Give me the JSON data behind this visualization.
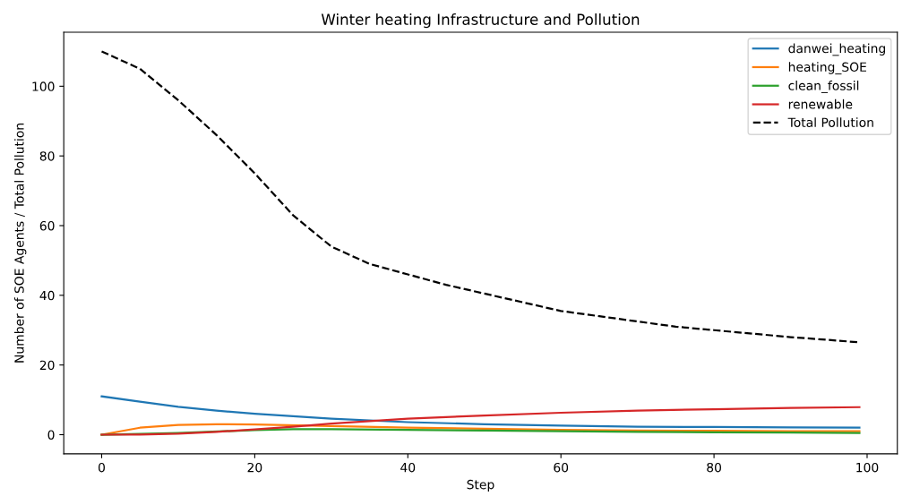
{
  "chart_data": {
    "type": "line",
    "title": "Winter heating Infrastructure and Pollution",
    "xlabel": "Step",
    "ylabel": "Number of SOE Agents / Total Pollution",
    "xlim": [
      -4.95,
      103.95
    ],
    "xticks": [
      0,
      20,
      40,
      60,
      80,
      100
    ],
    "ylim": [
      -5.5,
      115.5
    ],
    "yticks": [
      0,
      20,
      40,
      60,
      80,
      100
    ],
    "grid": false,
    "legend": "top right",
    "series": [
      {
        "name": "danwei_heating",
        "color": "#1f77b4",
        "x": [
          0,
          5,
          10,
          15,
          20,
          30,
          40,
          50,
          60,
          70,
          80,
          90,
          99
        ],
        "values": [
          11,
          9.5,
          8,
          6.9,
          6,
          4.6,
          3.6,
          3,
          2.6,
          2.3,
          2.2,
          2.1,
          2.0
        ]
      },
      {
        "name": "heating_SOE",
        "color": "#ff7f0e",
        "x": [
          0,
          5,
          10,
          15,
          20,
          30,
          40,
          50,
          60,
          70,
          80,
          90,
          99
        ],
        "values": [
          0,
          2.0,
          2.8,
          3.0,
          2.9,
          2.5,
          2.0,
          1.7,
          1.4,
          1.2,
          1.1,
          1.0,
          1.0
        ]
      },
      {
        "name": "clean_fossil",
        "color": "#2ca02c",
        "x": [
          0,
          10,
          20,
          25,
          30,
          40,
          50,
          60,
          70,
          80,
          90,
          99
        ],
        "values": [
          0,
          0.5,
          1.3,
          1.6,
          1.6,
          1.4,
          1.2,
          1.0,
          0.8,
          0.7,
          0.6,
          0.5
        ]
      },
      {
        "name": "renewable",
        "color": "#d62728",
        "x": [
          0,
          5,
          10,
          15,
          20,
          25,
          30,
          35,
          40,
          50,
          60,
          70,
          80,
          90,
          99
        ],
        "values": [
          0,
          0.05,
          0.3,
          0.8,
          1.5,
          2.3,
          3.2,
          3.9,
          4.6,
          5.5,
          6.3,
          6.9,
          7.3,
          7.7,
          7.9
        ]
      },
      {
        "name": "Total Pollution",
        "color": "#000000",
        "line_style": "dashed",
        "x": [
          0,
          5,
          10,
          15,
          20,
          25,
          30,
          35,
          40,
          45,
          50,
          55,
          60,
          65,
          70,
          75,
          80,
          85,
          90,
          95,
          99
        ],
        "values": [
          110,
          105,
          96,
          86,
          75,
          63,
          54,
          49,
          46,
          43,
          40.5,
          38,
          35.5,
          34,
          32.5,
          31,
          30,
          29,
          28,
          27.2,
          26.5
        ]
      }
    ]
  }
}
